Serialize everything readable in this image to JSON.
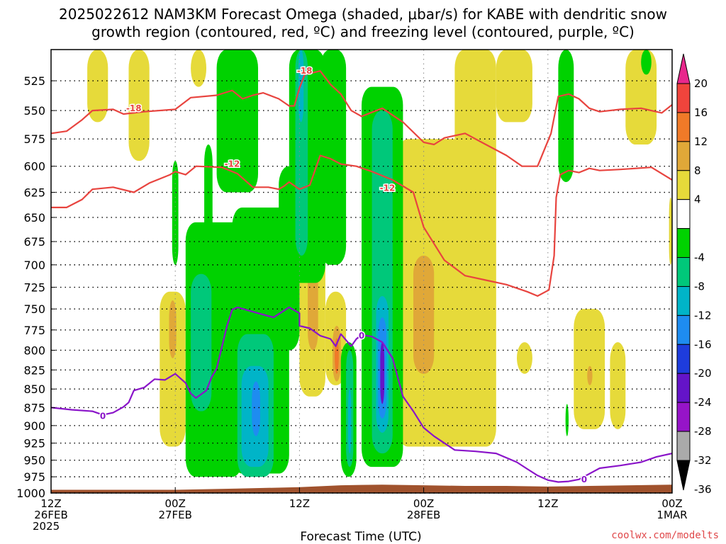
{
  "title": {
    "line1": "2025022612 NAM3KM Forecast Omega (shaded, μbar/s) for KABE with dendritic snow",
    "line2": "growth region (contoured, red, ºC) and freezing level (contoured, purple, ºC)"
  },
  "credit": "coolwx.com/modelts",
  "colors": {
    "frame": "#000000",
    "grid": "#000000",
    "dgz_contour": "#e8443f",
    "freezing_contour": "#8a14c9",
    "ground": "#a0522d"
  },
  "chart_data": {
    "type": "heatmap",
    "title": "2025022612 NAM3KM Forecast Omega (shaded, μbar/s) for KABE with dendritic snow growth region (contoured, red, ºC) and freezing level (contoured, purple, ºC)",
    "xlabel": "Forecast Time (UTC)",
    "ylabel": "",
    "x_range_hours": [
      0,
      60
    ],
    "y_range_hpa": [
      500,
      1000
    ],
    "y_scale": "log-pressure",
    "y_ticks": [
      525,
      550,
      575,
      600,
      625,
      650,
      675,
      700,
      725,
      750,
      775,
      800,
      825,
      850,
      875,
      900,
      925,
      950,
      975,
      1000
    ],
    "x_ticks": [
      {
        "hour": 0,
        "line1": "12Z",
        "line2": "26FEB",
        "line3": "2025"
      },
      {
        "hour": 12,
        "line1": "00Z",
        "line2": "27FEB",
        "line3": ""
      },
      {
        "hour": 24,
        "line1": "12Z",
        "line2": "",
        "line3": ""
      },
      {
        "hour": 36,
        "line1": "00Z",
        "line2": "28FEB",
        "line3": ""
      },
      {
        "hour": 48,
        "line1": "12Z",
        "line2": "",
        "line3": ""
      },
      {
        "hour": 60,
        "line1": "00Z",
        "line2": "1MAR",
        "line3": ""
      }
    ],
    "grid": true,
    "colorbar": {
      "units": "μbar/s",
      "labels": [
        20,
        16,
        12,
        8,
        4,
        -4,
        -8,
        -12,
        -16,
        -20,
        -24,
        -28,
        -32,
        -36
      ],
      "bins": [
        {
          "from": 20,
          "to": 24,
          "color": "#e8288c"
        },
        {
          "from": 16,
          "to": 20,
          "color": "#f0443c"
        },
        {
          "from": 12,
          "to": 16,
          "color": "#f07a28"
        },
        {
          "from": 8,
          "to": 12,
          "color": "#e0a838"
        },
        {
          "from": 4,
          "to": 8,
          "color": "#e6da3a"
        },
        {
          "from": -4,
          "to": 4,
          "color": "#ffffff"
        },
        {
          "from": -8,
          "to": -4,
          "color": "#00d200"
        },
        {
          "from": -12,
          "to": -8,
          "color": "#00c87a"
        },
        {
          "from": -16,
          "to": -12,
          "color": "#00b4c8"
        },
        {
          "from": -20,
          "to": -16,
          "color": "#1e8cf0"
        },
        {
          "from": -24,
          "to": -20,
          "color": "#1e3cdc"
        },
        {
          "from": -28,
          "to": -24,
          "color": "#6414c8"
        },
        {
          "from": -32,
          "to": -28,
          "color": "#9614c8"
        },
        {
          "from": -36,
          "to": -32,
          "color": "#aaaaaa"
        },
        {
          "from": -40,
          "to": -36,
          "color": "#000000"
        }
      ]
    },
    "omega_areas": [
      {
        "band": "warm4",
        "t0": 3.5,
        "t1": 5.5,
        "p_top": 500,
        "p_bot": 560
      },
      {
        "band": "warm4",
        "t0": 7.5,
        "t1": 9.5,
        "p_top": 500,
        "p_bot": 595
      },
      {
        "band": "warm4",
        "t0": 13.5,
        "t1": 15.0,
        "p_top": 500,
        "p_bot": 530
      },
      {
        "band": "warm4",
        "t0": 10.5,
        "t1": 13.0,
        "p_top": 730,
        "p_bot": 930
      },
      {
        "band": "warm8",
        "t0": 11.4,
        "t1": 12.1,
        "p_top": 740,
        "p_bot": 810
      },
      {
        "band": "warm4",
        "t0": 24.0,
        "t1": 26.5,
        "p_top": 670,
        "p_bot": 860
      },
      {
        "band": "warm8",
        "t0": 24.8,
        "t1": 25.8,
        "p_top": 700,
        "p_bot": 800
      },
      {
        "band": "warm4",
        "t0": 26.5,
        "t1": 28.5,
        "p_top": 730,
        "p_bot": 845
      },
      {
        "band": "warm8",
        "t0": 27.2,
        "t1": 28.0,
        "p_top": 770,
        "p_bot": 840
      },
      {
        "band": "warm12",
        "t0": 27.4,
        "t1": 27.8,
        "p_top": 785,
        "p_bot": 830
      },
      {
        "band": "warm4",
        "t0": 31.0,
        "t1": 33.0,
        "p_top": 650,
        "p_bot": 800
      },
      {
        "band": "warm4",
        "t0": 33.5,
        "t1": 43.0,
        "p_top": 575,
        "p_bot": 930
      },
      {
        "band": "warm8",
        "t0": 35.0,
        "t1": 37.0,
        "p_top": 690,
        "p_bot": 830
      },
      {
        "band": "warm4",
        "t0": 39.0,
        "t1": 43.0,
        "p_top": 500,
        "p_bot": 640
      },
      {
        "band": "warm4",
        "t0": 43.0,
        "t1": 46.5,
        "p_top": 500,
        "p_bot": 560
      },
      {
        "band": "warm4",
        "t0": 45.0,
        "t1": 46.5,
        "p_top": 790,
        "p_bot": 830
      },
      {
        "band": "warm4",
        "t0": 50.5,
        "t1": 53.5,
        "p_top": 750,
        "p_bot": 905
      },
      {
        "band": "warm8",
        "t0": 51.8,
        "t1": 52.3,
        "p_top": 820,
        "p_bot": 845
      },
      {
        "band": "warm4",
        "t0": 54.0,
        "t1": 55.5,
        "p_top": 790,
        "p_bot": 905
      },
      {
        "band": "warm4",
        "t0": 55.5,
        "t1": 58.5,
        "p_top": 500,
        "p_bot": 580
      },
      {
        "band": "warm4",
        "t0": 59.7,
        "t1": 60.0,
        "p_top": 630,
        "p_bot": 700
      },
      {
        "band": "cool4",
        "t0": 11.7,
        "t1": 12.3,
        "p_top": 595,
        "p_bot": 700
      },
      {
        "band": "cool4",
        "t0": 13.0,
        "t1": 18.5,
        "p_top": 655,
        "p_bot": 975
      },
      {
        "band": "cool8",
        "t0": 13.5,
        "t1": 15.5,
        "p_top": 710,
        "p_bot": 880
      },
      {
        "band": "cool4",
        "t0": 14.8,
        "t1": 15.6,
        "p_top": 580,
        "p_bot": 680
      },
      {
        "band": "cool4",
        "t0": 16.0,
        "t1": 20.0,
        "p_top": 500,
        "p_bot": 625
      },
      {
        "band": "cool4",
        "t0": 17.5,
        "t1": 23.0,
        "p_top": 640,
        "p_bot": 970
      },
      {
        "band": "cool8",
        "t0": 18.0,
        "t1": 21.5,
        "p_top": 780,
        "p_bot": 975
      },
      {
        "band": "cool12",
        "t0": 18.4,
        "t1": 21.0,
        "p_top": 820,
        "p_bot": 960
      },
      {
        "band": "cool16",
        "t0": 19.4,
        "t1": 20.2,
        "p_top": 840,
        "p_bot": 915
      },
      {
        "band": "cool4",
        "t0": 22.0,
        "t1": 24.0,
        "p_top": 600,
        "p_bot": 800
      },
      {
        "band": "cool4",
        "t0": 23.0,
        "t1": 26.5,
        "p_top": 500,
        "p_bot": 720
      },
      {
        "band": "cool8",
        "t0": 23.6,
        "t1": 24.8,
        "p_top": 500,
        "p_bot": 690
      },
      {
        "band": "cool12",
        "t0": 23.9,
        "t1": 24.4,
        "p_top": 500,
        "p_bot": 560
      },
      {
        "band": "cool4",
        "t0": 26.0,
        "t1": 28.5,
        "p_top": 500,
        "p_bot": 700
      },
      {
        "band": "cool4",
        "t0": 28.0,
        "t1": 29.5,
        "p_top": 790,
        "p_bot": 975
      },
      {
        "band": "cool8",
        "t0": 28.5,
        "t1": 29.2,
        "p_top": 800,
        "p_bot": 960
      },
      {
        "band": "cool12",
        "t0": 28.7,
        "t1": 29.0,
        "p_top": 850,
        "p_bot": 940
      },
      {
        "band": "cool4",
        "t0": 30.0,
        "t1": 34.0,
        "p_top": 530,
        "p_bot": 960
      },
      {
        "band": "cool8",
        "t0": 31.0,
        "t1": 33.0,
        "p_top": 550,
        "p_bot": 940
      },
      {
        "band": "cool12",
        "t0": 31.4,
        "t1": 32.6,
        "p_top": 735,
        "p_bot": 910
      },
      {
        "band": "cool16",
        "t0": 31.6,
        "t1": 32.4,
        "p_top": 760,
        "p_bot": 890
      },
      {
        "band": "cool24",
        "t0": 31.8,
        "t1": 32.2,
        "p_top": 790,
        "p_bot": 870
      },
      {
        "band": "cool4",
        "t0": 49.0,
        "t1": 50.5,
        "p_top": 500,
        "p_bot": 615
      },
      {
        "band": "cool4",
        "t0": 57.0,
        "t1": 58.0,
        "p_top": 500,
        "p_bot": 520
      },
      {
        "band": "cool4",
        "t0": 49.7,
        "t1": 50.0,
        "p_top": 870,
        "p_bot": 915
      }
    ],
    "dgz_contours": [
      {
        "label": "-18",
        "label_at": [
          {
            "t": 8.0,
            "p": 548
          },
          {
            "t": 24.5,
            "p": 517
          }
        ],
        "points": [
          [
            0,
            570
          ],
          [
            1.5,
            568
          ],
          [
            3,
            558
          ],
          [
            4,
            550
          ],
          [
            6,
            549
          ],
          [
            7,
            553
          ],
          [
            9,
            551
          ],
          [
            12,
            549
          ],
          [
            13.5,
            539
          ],
          [
            16,
            537
          ],
          [
            17.5,
            533
          ],
          [
            18.5,
            540
          ],
          [
            19.5,
            537
          ],
          [
            20.5,
            535
          ],
          [
            22,
            540
          ],
          [
            23,
            546
          ],
          [
            23.5,
            546
          ],
          [
            24,
            531
          ],
          [
            24.5,
            520
          ],
          [
            26,
            517
          ],
          [
            27,
            528
          ],
          [
            28,
            536
          ],
          [
            29,
            550
          ],
          [
            30,
            555
          ],
          [
            32,
            548
          ],
          [
            34,
            560
          ],
          [
            36,
            578
          ],
          [
            37,
            580
          ],
          [
            38,
            574
          ],
          [
            40,
            570
          ],
          [
            42,
            580
          ],
          [
            44,
            590
          ],
          [
            45.5,
            600
          ],
          [
            47,
            600
          ],
          [
            48.3,
            570
          ],
          [
            49,
            538
          ],
          [
            50,
            536
          ],
          [
            51,
            540
          ],
          [
            52,
            548
          ],
          [
            53,
            551
          ],
          [
            55,
            549
          ],
          [
            57,
            548
          ],
          [
            59,
            552
          ],
          [
            60,
            545
          ]
        ]
      },
      {
        "label": "-12",
        "label_at": [
          {
            "t": 17.5,
            "p": 598
          },
          {
            "t": 32.5,
            "p": 621
          }
        ],
        "points": [
          [
            0,
            640
          ],
          [
            1.5,
            640
          ],
          [
            3,
            632
          ],
          [
            4,
            622
          ],
          [
            6,
            620
          ],
          [
            8,
            625
          ],
          [
            9.5,
            616
          ],
          [
            11.5,
            608
          ],
          [
            12,
            605
          ],
          [
            13,
            608
          ],
          [
            14,
            600
          ],
          [
            16.5,
            601
          ],
          [
            18,
            607
          ],
          [
            19.5,
            620
          ],
          [
            21,
            620
          ],
          [
            22,
            622
          ],
          [
            22.5,
            619
          ],
          [
            23,
            615
          ],
          [
            24,
            622
          ],
          [
            25,
            618
          ],
          [
            26,
            590
          ],
          [
            27,
            593
          ],
          [
            28,
            598
          ],
          [
            29.5,
            600
          ],
          [
            31,
            605
          ],
          [
            33,
            613
          ],
          [
            35,
            625
          ],
          [
            36,
            660
          ],
          [
            38,
            695
          ],
          [
            40,
            712
          ],
          [
            42,
            717
          ],
          [
            44,
            722
          ],
          [
            46,
            730
          ],
          [
            47,
            735
          ],
          [
            48.1,
            728
          ],
          [
            48.6,
            690
          ],
          [
            48.8,
            630
          ],
          [
            49.2,
            608
          ],
          [
            50,
            604
          ],
          [
            51,
            606
          ],
          [
            52,
            602
          ],
          [
            53,
            604
          ],
          [
            55,
            603
          ],
          [
            58,
            601
          ],
          [
            60,
            613
          ]
        ]
      }
    ],
    "freezing_contour": {
      "label": "0",
      "label_at": [
        {
          "t": 5.0,
          "p": 887
        },
        {
          "t": 30.0,
          "p": 782
        },
        {
          "t": 51.5,
          "p": 979
        }
      ],
      "points": [
        [
          0,
          875
        ],
        [
          2,
          878
        ],
        [
          4,
          880
        ],
        [
          5,
          885
        ],
        [
          6,
          882
        ],
        [
          7,
          874
        ],
        [
          7.5,
          868
        ],
        [
          8,
          852
        ],
        [
          9,
          848
        ],
        [
          10,
          837
        ],
        [
          11,
          838
        ],
        [
          12,
          830
        ],
        [
          13,
          842
        ],
        [
          13.5,
          856
        ],
        [
          14,
          862
        ],
        [
          15,
          852
        ],
        [
          15.5,
          835
        ],
        [
          16,
          823
        ],
        [
          17,
          770
        ],
        [
          17.5,
          751
        ],
        [
          18,
          748
        ],
        [
          20,
          755
        ],
        [
          21.5,
          760
        ],
        [
          23,
          748
        ],
        [
          24,
          755
        ],
        [
          24,
          770
        ],
        [
          25,
          773
        ],
        [
          26,
          782
        ],
        [
          27,
          786
        ],
        [
          27.5,
          795
        ],
        [
          28,
          780
        ],
        [
          29,
          795
        ],
        [
          29.5,
          786
        ],
        [
          30,
          781
        ],
        [
          31,
          783
        ],
        [
          32,
          790
        ],
        [
          33,
          810
        ],
        [
          33.5,
          835
        ],
        [
          34,
          860
        ],
        [
          35,
          880
        ],
        [
          36,
          903
        ],
        [
          37,
          915
        ],
        [
          38,
          925
        ],
        [
          39,
          935
        ],
        [
          41,
          937
        ],
        [
          43,
          940
        ],
        [
          45,
          953
        ],
        [
          46,
          963
        ],
        [
          47,
          973
        ],
        [
          48,
          980
        ],
        [
          49,
          983
        ],
        [
          50,
          982
        ],
        [
          51,
          979
        ],
        [
          53,
          962
        ],
        [
          55,
          958
        ],
        [
          57,
          953
        ],
        [
          58.5,
          945
        ],
        [
          60,
          940
        ]
      ]
    },
    "ground_surface": [
      [
        0,
        995
      ],
      [
        5,
        995
      ],
      [
        12,
        995
      ],
      [
        18,
        993
      ],
      [
        24,
        991
      ],
      [
        28,
        988
      ],
      [
        32,
        987
      ],
      [
        36,
        988
      ],
      [
        40,
        989
      ],
      [
        44,
        989
      ],
      [
        48,
        990
      ],
      [
        52,
        989
      ],
      [
        56,
        988
      ],
      [
        60,
        987
      ]
    ]
  }
}
